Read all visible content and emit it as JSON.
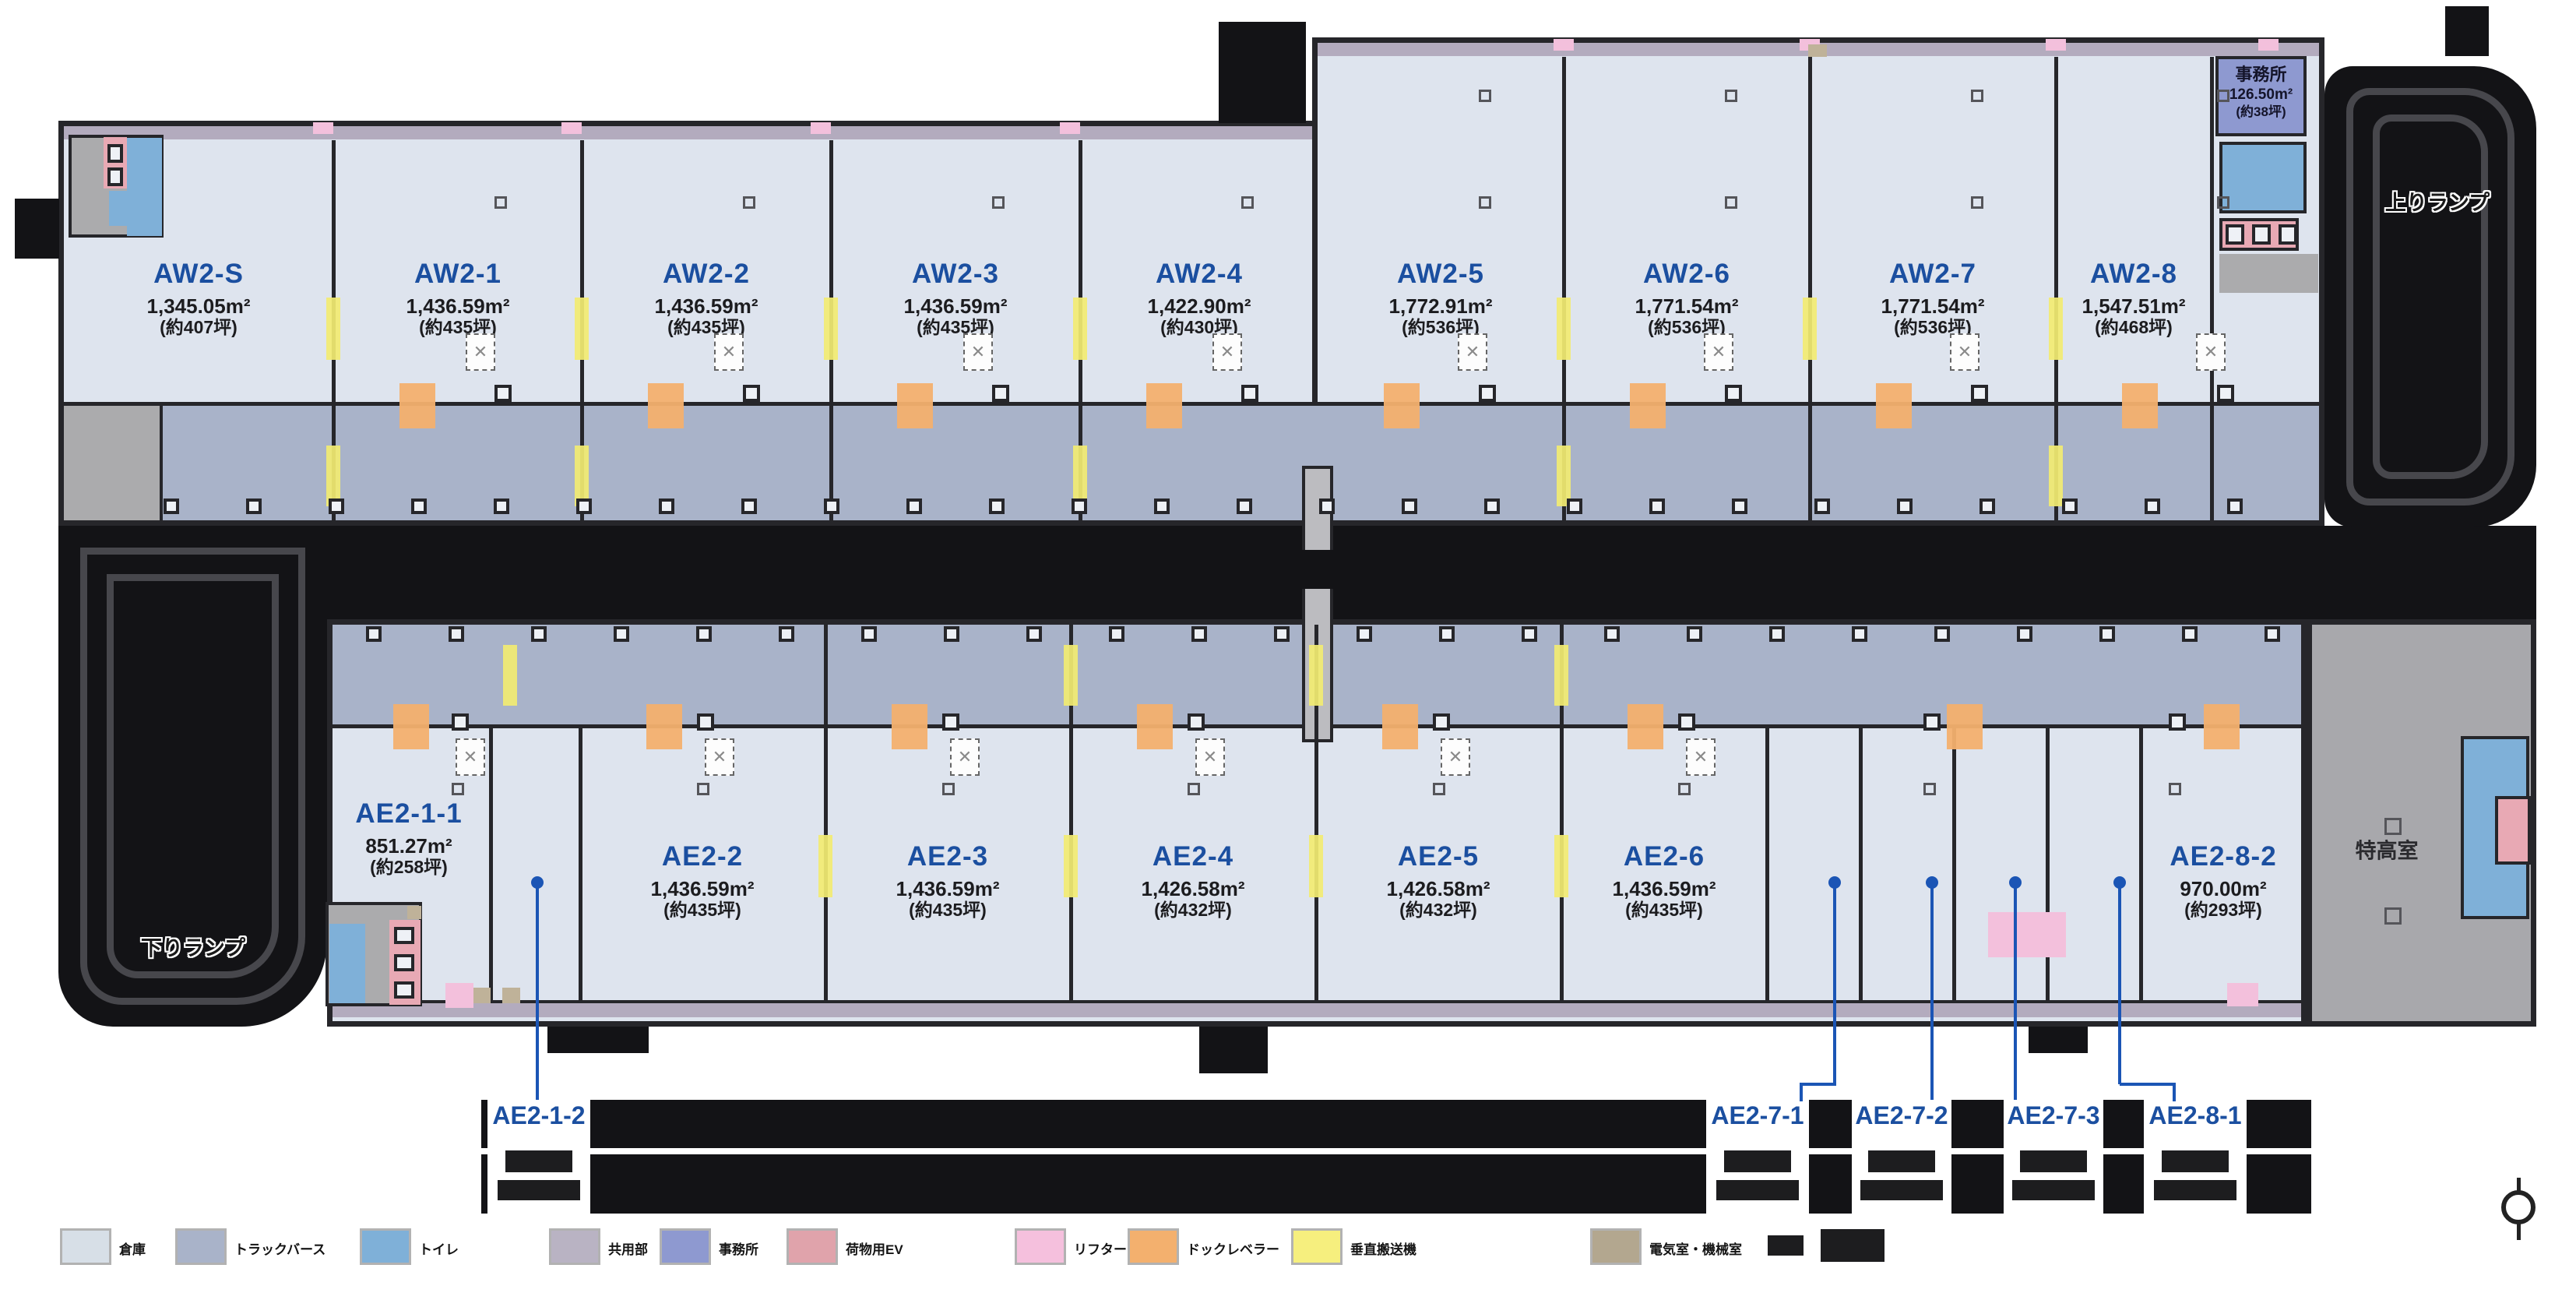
{
  "top_units": [
    {
      "name": "AW2-S",
      "area": "1,345.05m²",
      "tsubo": "(約407坪)"
    },
    {
      "name": "AW2-1",
      "area": "1,436.59m²",
      "tsubo": "(約435坪)"
    },
    {
      "name": "AW2-2",
      "area": "1,436.59m²",
      "tsubo": "(約435坪)"
    },
    {
      "name": "AW2-3",
      "area": "1,436.59m²",
      "tsubo": "(約435坪)"
    },
    {
      "name": "AW2-4",
      "area": "1,422.90m²",
      "tsubo": "(約430坪)"
    },
    {
      "name": "AW2-5",
      "area": "1,772.91m²",
      "tsubo": "(約536坪)"
    },
    {
      "name": "AW2-6",
      "area": "1,771.54m²",
      "tsubo": "(約536坪)"
    },
    {
      "name": "AW2-7",
      "area": "1,771.54m²",
      "tsubo": "(約536坪)"
    },
    {
      "name": "AW2-8",
      "area": "1,547.51m²",
      "tsubo": "(約468坪)"
    }
  ],
  "bottom_units": [
    {
      "name": "AE2-1-1",
      "area": "851.27m²",
      "tsubo": "(約258坪)"
    },
    {
      "name": "AE2-2",
      "area": "1,436.59m²",
      "tsubo": "(約435坪)"
    },
    {
      "name": "AE2-3",
      "area": "1,436.59m²",
      "tsubo": "(約435坪)"
    },
    {
      "name": "AE2-4",
      "area": "1,426.58m²",
      "tsubo": "(約432坪)"
    },
    {
      "name": "AE2-5",
      "area": "1,426.58m²",
      "tsubo": "(約432坪)"
    },
    {
      "name": "AE2-6",
      "area": "1,436.59m²",
      "tsubo": "(約435坪)"
    },
    {
      "name": "AE2-8-2",
      "area": "970.00m²",
      "tsubo": "(約293坪)"
    }
  ],
  "callouts": [
    {
      "name": "AE2-1-2"
    },
    {
      "name": "AE2-7-1"
    },
    {
      "name": "AE2-7-2"
    },
    {
      "name": "AE2-7-3"
    },
    {
      "name": "AE2-8-1"
    }
  ],
  "office": {
    "name": "事務所",
    "area": "126.50m²",
    "tsubo": "(約38坪)"
  },
  "rooms": {
    "tokko": "特高室"
  },
  "ramps": {
    "up": "上りランプ",
    "down": "下りランプ"
  },
  "legend": {
    "items": [
      {
        "label": "倉庫",
        "color": "#d7dfe7"
      },
      {
        "label": "トラックバース",
        "color": "#a9b3c9"
      },
      {
        "label": "トイレ",
        "color": "#7fb0d8"
      },
      {
        "label": "共用部",
        "color": "#b9b3c3"
      },
      {
        "label": "事務所",
        "color": "#8e99d0"
      },
      {
        "label": "荷物用EV",
        "color": "#e0a3ab"
      },
      {
        "label": "リフター",
        "color": "#f5c0dd"
      },
      {
        "label": "ドックレベラー",
        "color": "#f3b06e"
      },
      {
        "label": "垂直搬送機",
        "color": "#f6ef7e"
      },
      {
        "label": "電気室・機械室",
        "color": "#b3a78f"
      }
    ]
  },
  "colors": {
    "warehouse": "#dee4ee",
    "berth": "#a9b3c9",
    "wall": "#26262a",
    "unit_name_blue": "#1b4fa0",
    "leader_blue": "#1b55b5",
    "yellow": "#f2eb72",
    "orange": "#f3b06e",
    "office_purple": "#8e99d0"
  }
}
